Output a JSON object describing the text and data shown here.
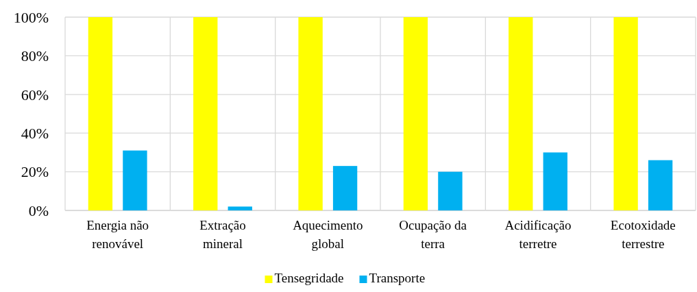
{
  "chart_data": {
    "type": "bar",
    "categories": [
      "Energia não renovável",
      "Extração mineral",
      "Aquecimento global",
      "Ocupação da terra",
      "Acidificação terretre",
      "Ecotoxidade terrestre"
    ],
    "series": [
      {
        "name": "Tensegridade",
        "color": "#ffff00",
        "values": [
          100,
          100,
          100,
          100,
          100,
          100
        ]
      },
      {
        "name": "Transporte",
        "color": "#00b0f0",
        "values": [
          31,
          2,
          23,
          20,
          30,
          26
        ]
      }
    ],
    "ylim": [
      0,
      100
    ],
    "yticks": [
      {
        "value": 0,
        "label": "0%"
      },
      {
        "value": 20,
        "label": "20%"
      },
      {
        "value": 40,
        "label": "40%"
      },
      {
        "value": 60,
        "label": "60%"
      },
      {
        "value": 80,
        "label": "80%"
      },
      {
        "value": 100,
        "label": "100%"
      }
    ],
    "grid": true,
    "legend": "bottom"
  }
}
